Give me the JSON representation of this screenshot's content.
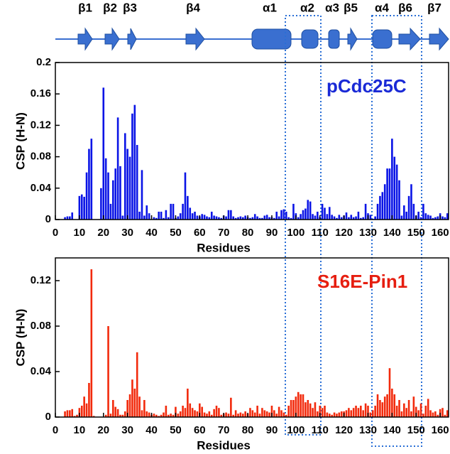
{
  "secondary_structure": [
    "β1",
    "β2",
    "β3",
    "β4",
    "α1",
    "α2",
    "α3",
    "β5",
    "α4",
    "β6",
    "β7"
  ],
  "chart_data": [
    {
      "type": "bar",
      "annotation": "pCdc25C",
      "ylabel": "CSP (H-N)",
      "xlabel": "Residues",
      "color": "#0a14e6",
      "annotation_color": "#1a2ad6",
      "xlim": [
        0,
        163.5
      ],
      "ylim": [
        0,
        0.2
      ],
      "xticks": [
        0,
        10,
        20,
        30,
        40,
        50,
        60,
        70,
        80,
        90,
        100,
        110,
        120,
        130,
        140,
        150,
        160
      ],
      "yticks": [
        0,
        0.04,
        0.08,
        0.12,
        0.16,
        0.2
      ],
      "x": [
        4,
        5,
        6,
        7,
        8,
        9,
        10,
        11,
        12,
        13,
        14,
        15,
        16,
        17,
        18,
        19,
        20,
        21,
        22,
        23,
        24,
        25,
        26,
        27,
        28,
        29,
        30,
        31,
        32,
        33,
        34,
        35,
        36,
        37,
        38,
        39,
        40,
        41,
        42,
        43,
        44,
        45,
        46,
        47,
        48,
        49,
        50,
        51,
        52,
        53,
        54,
        55,
        56,
        57,
        58,
        59,
        60,
        61,
        62,
        63,
        64,
        65,
        66,
        67,
        68,
        69,
        70,
        71,
        72,
        73,
        74,
        75,
        76,
        77,
        78,
        79,
        80,
        81,
        82,
        83,
        84,
        85,
        86,
        87,
        88,
        89,
        90,
        91,
        92,
        93,
        94,
        95,
        96,
        97,
        98,
        99,
        100,
        101,
        102,
        103,
        104,
        105,
        106,
        107,
        108,
        109,
        110,
        111,
        112,
        113,
        114,
        115,
        116,
        117,
        118,
        119,
        120,
        121,
        122,
        123,
        124,
        125,
        126,
        127,
        128,
        129,
        130,
        131,
        132,
        133,
        134,
        135,
        136,
        137,
        138,
        139,
        140,
        141,
        142,
        143,
        144,
        145,
        146,
        147,
        148,
        149,
        150,
        151,
        152,
        153,
        154,
        155,
        156,
        157,
        158,
        159,
        160,
        161,
        162,
        163
      ],
      "values": [
        0.003,
        0.004,
        0.004,
        0.009,
        null,
        null,
        0.03,
        0.032,
        0.029,
        0.06,
        0.09,
        0.103,
        null,
        null,
        null,
        0.04,
        0.168,
        0.078,
        0.06,
        0.02,
        0.05,
        0.065,
        0.13,
        0.068,
        0.005,
        0.11,
        0.09,
        0.08,
        0.135,
        0.146,
        0.095,
        0.01,
        0.063,
        0.005,
        0.018,
        0.008,
        null,
        0.003,
        0.002,
        0.01,
        0.01,
        0.002,
        0.012,
        0.003,
        0.02,
        0.02,
        0.002,
        0.004,
        0.008,
        0.02,
        0.06,
        0.03,
        0.015,
        0.008,
        0.01,
        0.005,
        0.004,
        0.007,
        0.006,
        0.004,
        0.003,
        0.01,
        0.005,
        0.004,
        0.003,
        0.002,
        0.005,
        0.004,
        0.012,
        0.012,
        0.004,
        0.002,
        0.003,
        0.004,
        0.003,
        0.005,
        0.003,
        0.002,
        0.003,
        0.007,
        0.004,
        0.002,
        0.002,
        0.005,
        0.006,
        0.003,
        0.003,
        0.002,
        0.01,
        0.004,
        0.012,
        0.013,
        0.01,
        0.003,
        0.002,
        0.02,
        0.008,
        0.003,
        0.007,
        0.012,
        0.014,
        0.025,
        0.023,
        0.007,
        0.005,
        0.01,
        0.003,
        0.02,
        0.015,
        0.007,
        0.016,
        0.006,
        0.004,
        0.002,
        0.006,
        0.003,
        0.005,
        0.009,
        0.003,
        0.006,
        0.003,
        0.004,
        0.01,
        0.002,
        0.003,
        0.02,
        0.008,
        0.006,
        0.001,
        0.004,
        0.02,
        0.03,
        0.035,
        0.045,
        0.065,
        0.065,
        0.103,
        0.08,
        0.07,
        0.05,
        0.005,
        0.018,
        0.01,
        0.03,
        0.045,
        0.02,
        0.005,
        0.01,
        0.003,
        0.02,
        0.008,
        0.006,
        0.005,
        0.002,
        0.003,
        0.004,
        0.008,
        0.004,
        0.003,
        0.008
      ]
    },
    {
      "type": "bar",
      "annotation": "S16E-Pin1",
      "ylabel": "CSP (H-N)",
      "xlabel": "Residues",
      "color": "#f22a0c",
      "annotation_color": "#e61e10",
      "xlim": [
        0,
        163.5
      ],
      "ylim": [
        0,
        0.14
      ],
      "xticks": [
        0,
        10,
        20,
        30,
        40,
        50,
        60,
        70,
        80,
        90,
        100,
        110,
        120,
        130,
        140,
        150,
        160
      ],
      "yticks": [
        0,
        0.04,
        0.08,
        0.12
      ],
      "x": [
        4,
        5,
        6,
        7,
        8,
        9,
        10,
        11,
        12,
        13,
        14,
        15,
        16,
        17,
        18,
        19,
        20,
        21,
        22,
        23,
        24,
        25,
        26,
        27,
        28,
        29,
        30,
        31,
        32,
        33,
        34,
        35,
        36,
        37,
        38,
        39,
        40,
        41,
        42,
        43,
        44,
        45,
        46,
        47,
        48,
        49,
        50,
        51,
        52,
        53,
        54,
        55,
        56,
        57,
        58,
        59,
        60,
        61,
        62,
        63,
        64,
        65,
        66,
        67,
        68,
        69,
        70,
        71,
        72,
        73,
        74,
        75,
        76,
        77,
        78,
        79,
        80,
        81,
        82,
        83,
        84,
        85,
        86,
        87,
        88,
        89,
        90,
        91,
        92,
        93,
        94,
        95,
        96,
        97,
        98,
        99,
        100,
        101,
        102,
        103,
        104,
        105,
        106,
        107,
        108,
        109,
        110,
        111,
        112,
        113,
        114,
        115,
        116,
        117,
        118,
        119,
        120,
        121,
        122,
        123,
        124,
        125,
        126,
        127,
        128,
        129,
        130,
        131,
        132,
        133,
        134,
        135,
        136,
        137,
        138,
        139,
        140,
        141,
        142,
        143,
        144,
        145,
        146,
        147,
        148,
        149,
        150,
        151,
        152,
        153,
        154,
        155,
        156,
        157,
        158,
        159,
        160,
        161,
        162,
        163
      ],
      "values": [
        0.005,
        0.006,
        0.006,
        0.007,
        0.001,
        0.002,
        0.008,
        0.01,
        0.018,
        0.012,
        0.03,
        0.13,
        0.001,
        null,
        null,
        null,
        null,
        0.002,
        0.08,
        0.003,
        0.015,
        0.009,
        0.007,
        0.002,
        0.002,
        0.005,
        0.015,
        0.02,
        0.033,
        0.025,
        0.057,
        0.018,
        0.006,
        0.015,
        0.005,
        0.004,
        0.002,
        0.003,
        0.002,
        0.001,
        0.002,
        0.004,
        0.01,
        0.002,
        0.003,
        0.002,
        0.009,
        0.003,
        0.005,
        0.01,
        0.008,
        0.025,
        0.012,
        0.008,
        0.006,
        0.005,
        0.012,
        0.009,
        0.004,
        0.003,
        0.005,
        0.002,
        0.007,
        0.01,
        0.008,
        0.002,
        0.003,
        0.004,
        0.003,
        0.017,
        0.002,
        0.006,
        0.003,
        0.004,
        0.003,
        0.005,
        0.003,
        0.008,
        0.006,
        0.004,
        0.01,
        0.003,
        0.008,
        0.006,
        0.005,
        0.004,
        0.01,
        0.006,
        0.003,
        0.009,
        0.006,
        0.004,
        0.002,
        0.01,
        0.015,
        0.015,
        0.018,
        0.022,
        0.02,
        0.02,
        0.013,
        0.015,
        0.012,
        0.008,
        0.013,
        0.005,
        0.01,
        0.008,
        0.01,
        0.004,
        0.003,
        0.002,
        0.004,
        0.003,
        0.004,
        0.005,
        0.005,
        0.006,
        0.008,
        0.006,
        0.008,
        0.01,
        0.008,
        0.01,
        0.006,
        0.012,
        0.01,
        0.004,
        0.006,
        0.01,
        0.02,
        0.015,
        0.013,
        0.018,
        0.02,
        0.043,
        0.025,
        0.02,
        0.01,
        0.015,
        0.005,
        0.012,
        0.008,
        0.015,
        0.005,
        0.018,
        0.009,
        0.006,
        0.012,
        0.003,
        0.01,
        0.016,
        0.006,
        0.004,
        0.005,
        0.002,
        0.007,
        0.008,
        0.002,
        0.006
      ]
    }
  ]
}
